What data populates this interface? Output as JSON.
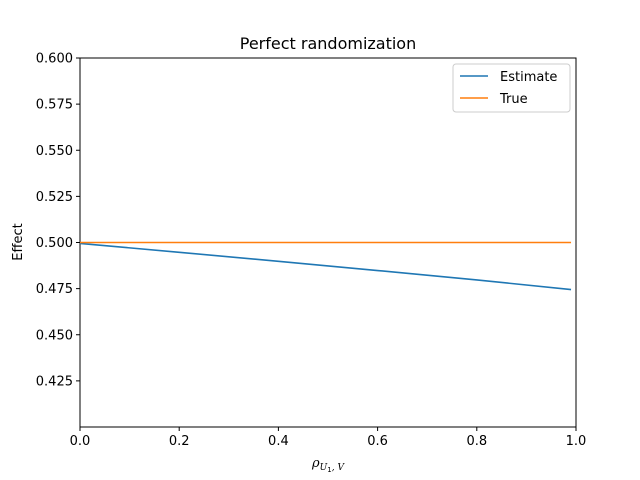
{
  "chart_data": {
    "type": "line",
    "title": "Perfect randomization",
    "ylabel": "Effect",
    "xlabel": {
      "symbol": "ρ",
      "subscript_main": "U",
      "subscript_index": "1",
      "subscript_rest": ", V"
    },
    "xlim": [
      0.0,
      1.0
    ],
    "ylim": [
      0.4,
      0.6
    ],
    "xticks": [
      0.0,
      0.2,
      0.4,
      0.6,
      0.8,
      1.0
    ],
    "xtick_labels": [
      "0.0",
      "0.2",
      "0.4",
      "0.6",
      "0.8",
      "1.0"
    ],
    "yticks": [
      0.425,
      0.45,
      0.475,
      0.5,
      0.525,
      0.55,
      0.575,
      0.6
    ],
    "ytick_labels": [
      "0.425",
      "0.450",
      "0.475",
      "0.500",
      "0.525",
      "0.550",
      "0.575",
      "0.600"
    ],
    "grid": false,
    "legend_position": "top-right",
    "series": [
      {
        "name": "Estimate",
        "color": "#1f77b4",
        "x": [
          0.0,
          0.2,
          0.4,
          0.6,
          0.8,
          0.99
        ],
        "y": [
          0.4995,
          0.4947,
          0.4898,
          0.4848,
          0.4797,
          0.4745
        ]
      },
      {
        "name": "True",
        "color": "#ff7f0e",
        "x": [
          0.0,
          0.99
        ],
        "y": [
          0.5,
          0.5
        ]
      }
    ]
  }
}
